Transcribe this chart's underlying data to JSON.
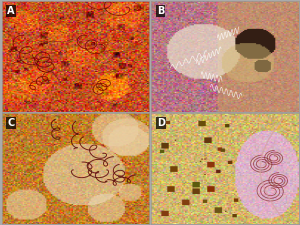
{
  "panels": [
    "A",
    "B",
    "C",
    "D"
  ],
  "label_color": "white",
  "label_bg": "black",
  "border_color": "#888888",
  "figure_bg": "#aaaaaa"
}
